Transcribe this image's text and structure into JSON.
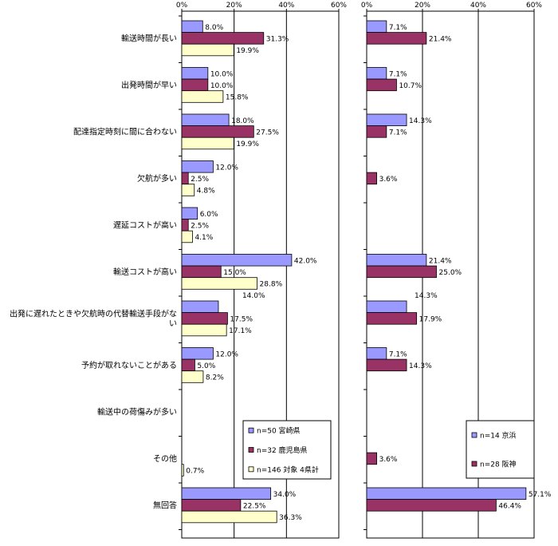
{
  "chart_data": [
    {
      "type": "bar",
      "orientation": "horizontal",
      "categories": [
        "輸送時間が長い",
        "出発時間が早い",
        "配達指定時刻に間に合わない",
        "欠航が多い",
        "遅延コストが高い",
        "輸送コストが高い",
        "出発に遅れたときや欠航時の代替輸送手段がな|い",
        "予約が取れないことがある",
        "輸送中の荷傷みが多い",
        "その他",
        "無回答"
      ],
      "series": [
        {
          "name": "n=50 宮崎県",
          "color": "#9999ff",
          "values": [
            8.0,
            10.0,
            18.0,
            12.0,
            6.0,
            42.0,
            14.0,
            12.0,
            null,
            null,
            34.0
          ],
          "labels": [
            "8.0%",
            "10.0%",
            "18.0%",
            "12.0%",
            "6.0%",
            "42.0%",
            "14.0%",
            "12.0%",
            "",
            "",
            "34.0%"
          ]
        },
        {
          "name": "n=32 鹿児島県",
          "color": "#993366",
          "values": [
            31.3,
            10.0,
            27.5,
            2.5,
            2.5,
            15.0,
            17.5,
            5.0,
            null,
            null,
            22.5
          ],
          "labels": [
            "31.3%",
            "10.0%",
            "27.5%",
            "2.5%",
            "2.5%",
            "15.0%",
            "17.5%",
            "5.0%",
            "",
            "",
            "22.5%"
          ]
        },
        {
          "name": "n=146 対象 4県計",
          "color": "#ffffcc",
          "values": [
            19.9,
            15.8,
            19.9,
            4.8,
            4.1,
            28.8,
            17.1,
            8.2,
            null,
            0.7,
            36.3
          ],
          "labels": [
            "19.9%",
            "15.8%",
            "19.9%",
            "4.8%",
            "4.1%",
            "28.8%",
            "17.1%",
            "8.2%",
            "",
            "0.7%",
            "36.3%"
          ]
        }
      ],
      "xlim": [
        0,
        60
      ],
      "x_ticks": [
        "0%",
        "20%",
        "40%",
        "60%"
      ],
      "grid": true,
      "legend_position": "bottom-right"
    },
    {
      "type": "bar",
      "orientation": "horizontal",
      "series": [
        {
          "name": "n=14 京浜",
          "color": "#9999ff",
          "values": [
            7.1,
            7.1,
            14.3,
            null,
            null,
            21.4,
            14.3,
            7.1,
            null,
            null,
            57.1
          ],
          "labels": [
            "7.1%",
            "7.1%",
            "14.3%",
            "",
            "",
            "21.4%",
            "14.3%",
            "7.1%",
            "",
            "",
            "57.1%"
          ]
        },
        {
          "name": "n=28 阪神",
          "color": "#993366",
          "values": [
            21.4,
            10.7,
            7.1,
            3.6,
            null,
            25.0,
            17.9,
            14.3,
            null,
            3.6,
            46.4
          ],
          "labels": [
            "21.4%",
            "10.7%",
            "7.1%",
            "3.6%",
            "",
            "25.0%",
            "17.9%",
            "14.3%",
            "",
            "3.6%",
            "46.4%"
          ]
        }
      ],
      "xlim": [
        0,
        60
      ],
      "x_ticks": [
        "0%",
        "20%",
        "40%",
        "60%"
      ],
      "grid": true,
      "legend_position": "bottom-right"
    }
  ]
}
